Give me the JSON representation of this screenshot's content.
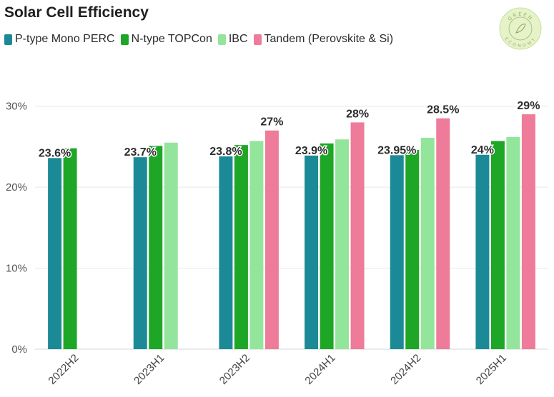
{
  "chart_data": {
    "type": "bar",
    "title": "Solar Cell Efficiency",
    "xlabel": "",
    "ylabel": "",
    "ylim": [
      0,
      35
    ],
    "yticks": [
      0,
      10,
      20,
      30
    ],
    "ytick_labels": [
      "0%",
      "10%",
      "20%",
      "30%"
    ],
    "categories": [
      "2022H2",
      "2023H1",
      "2023H2",
      "2024H1",
      "2024H2",
      "2025H1"
    ],
    "series": [
      {
        "name": "P-type Mono PERC",
        "color": "#1b8a96",
        "values": [
          23.6,
          23.7,
          23.8,
          23.9,
          23.95,
          24
        ]
      },
      {
        "name": "N-type TOPCon",
        "color": "#1ea626",
        "values": [
          24.8,
          25.1,
          25.2,
          25.4,
          24.6,
          25.7
        ]
      },
      {
        "name": "IBC",
        "color": "#94e59c",
        "values": [
          null,
          25.5,
          25.7,
          25.9,
          26.1,
          26.2
        ]
      },
      {
        "name": "Tandem (Perovskite & Si)",
        "color": "#ee7b99",
        "values": [
          null,
          null,
          27,
          28,
          28.5,
          29
        ]
      }
    ],
    "data_labels": [
      {
        "series": 0,
        "category": 0,
        "text": "23.6%"
      },
      {
        "series": 0,
        "category": 1,
        "text": "23.7%"
      },
      {
        "series": 0,
        "category": 2,
        "text": "23.8%"
      },
      {
        "series": 0,
        "category": 3,
        "text": "23.9%"
      },
      {
        "series": 0,
        "category": 4,
        "text": "23.95%"
      },
      {
        "series": 0,
        "category": 5,
        "text": "24%"
      },
      {
        "series": 3,
        "category": 2,
        "text": "27%"
      },
      {
        "series": 3,
        "category": 3,
        "text": "28%"
      },
      {
        "series": 3,
        "category": 4,
        "text": "28.5%"
      },
      {
        "series": 3,
        "category": 5,
        "text": "29%"
      }
    ],
    "legend": "top-left",
    "grid": true
  },
  "logo": {
    "top_text": "GREEN",
    "bottom_text": "ECONOMY"
  }
}
